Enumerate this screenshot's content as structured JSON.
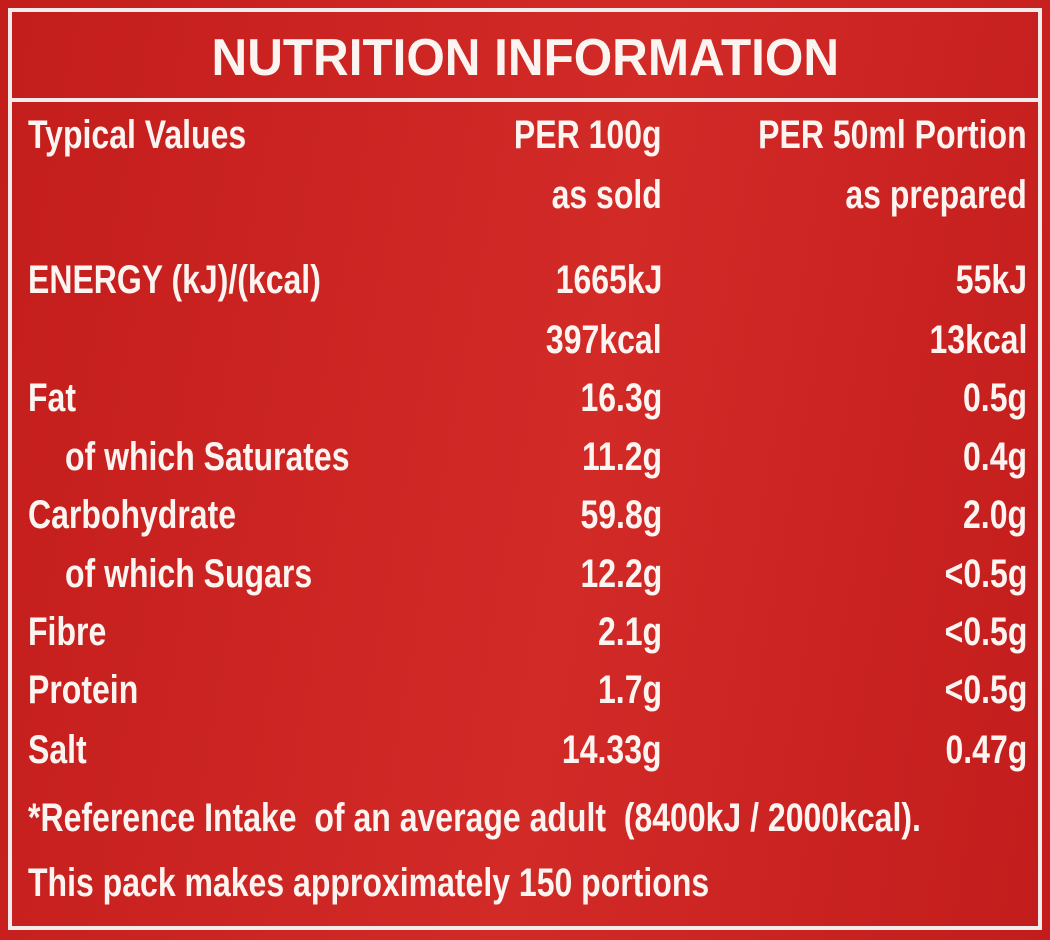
{
  "title": "NUTRITION INFORMATION",
  "header": {
    "label": "Typical Values",
    "col1": [
      "PER 100g",
      "as sold"
    ],
    "col2": [
      "PER 50ml Portion",
      "as prepared"
    ]
  },
  "rows": [
    {
      "label": "ENERGY (kJ)/(kcal)",
      "per_100g": [
        "1665kJ",
        "397kcal"
      ],
      "per_portion": [
        "55kJ",
        "13kcal"
      ]
    },
    {
      "label": "Fat",
      "per_100g": [
        "16.3g"
      ],
      "per_portion": [
        "0.5g"
      ]
    },
    {
      "label": "of which Saturates",
      "per_100g": [
        "11.2g"
      ],
      "per_portion": [
        "0.4g"
      ]
    },
    {
      "label": "Carbohydrate",
      "per_100g": [
        "59.8g"
      ],
      "per_portion": [
        "2.0g"
      ]
    },
    {
      "label": "of which Sugars",
      "per_100g": [
        "12.2g"
      ],
      "per_portion": [
        "<0.5g"
      ]
    },
    {
      "label": "Fibre",
      "per_100g": [
        "2.1g"
      ],
      "per_portion": [
        "<0.5g"
      ]
    },
    {
      "label": "Protein",
      "per_100g": [
        "1.7g"
      ],
      "per_portion": [
        "<0.5g"
      ]
    },
    {
      "label": "Salt",
      "per_100g": [
        "14.33g"
      ],
      "per_portion": [
        "0.47g"
      ]
    }
  ],
  "footnotes": [
    "*Reference Intake  of an average adult  (8400kJ / 2000kcal).",
    "This pack makes approximately 150 portions"
  ]
}
